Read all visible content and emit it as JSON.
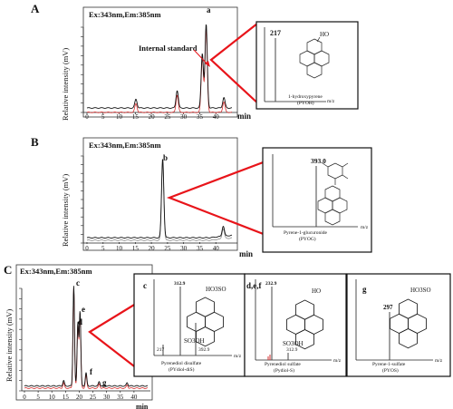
{
  "chart_data": [
    {
      "type": "line",
      "panel": "A",
      "condition": "Ex:343nm,Em:385nm",
      "ylabel": "Relative intensity (mV)",
      "xlabel": "min",
      "xlim": [
        0,
        45
      ],
      "x_ticks": [
        "0",
        "5",
        "10",
        "15",
        "20",
        "25",
        "30",
        "35",
        "40"
      ],
      "grid": false,
      "peaks": [
        {
          "label": "a",
          "x": 37.0,
          "height": 0.95
        },
        {
          "label": "",
          "x": 35.8,
          "height": 0.62
        },
        {
          "label": "",
          "x": 28.0,
          "height": 0.2
        },
        {
          "label": "",
          "x": 15.2,
          "height": 0.1
        },
        {
          "label": "",
          "x": 42.5,
          "height": 0.12
        }
      ],
      "annotations": [
        "Internal standard"
      ],
      "series": [
        {
          "color": "#111111",
          "baseline_offset": 0
        },
        {
          "color": "#d63030",
          "baseline_offset": -0.05
        }
      ],
      "inset": {
        "ms_peaks": [
          {
            "mz": 217,
            "label": "217"
          }
        ],
        "compound": "1-hydroxypyrene",
        "abbr": "(PYOH)",
        "xlabel": "m/z",
        "substituent": "HO"
      }
    },
    {
      "type": "line",
      "panel": "B",
      "condition": "Ex:343nm,Em:385nm",
      "ylabel": "Relative intensity (mV)",
      "xlabel": "min",
      "xlim": [
        0,
        45
      ],
      "x_ticks": [
        "0",
        "5",
        "10",
        "15",
        "20",
        "25",
        "30",
        "35",
        "40"
      ],
      "grid": false,
      "peaks": [
        {
          "label": "b",
          "x": 23.5,
          "height": 0.93
        },
        {
          "label": "",
          "x": 42.3,
          "height": 0.12
        }
      ],
      "series": [
        {
          "color": "#111111",
          "baseline_offset": 0
        },
        {
          "color": "#888888",
          "baseline_offset": -0.03
        }
      ],
      "inset": {
        "ms_peaks": [
          {
            "mz": 393.0,
            "label": "393.0"
          }
        ],
        "compound": "Pyrene-1-glucuronide",
        "abbr": "(PYOG)",
        "xlabel": "m/z"
      }
    },
    {
      "type": "line",
      "panel": "C",
      "condition": "Ex:343nm,Em:385nm",
      "ylabel": "Relative intensity (mV)",
      "xlabel": "min",
      "xlim": [
        0,
        45
      ],
      "x_ticks": [
        "0",
        "5",
        "10",
        "15",
        "20",
        "25",
        "30",
        "35",
        "40"
      ],
      "grid": false,
      "peaks": [
        {
          "label": "c",
          "x": 18.0,
          "height": 0.92
        },
        {
          "label": "d",
          "x": 19.5,
          "height": 0.58
        },
        {
          "label": "e",
          "x": 20.3,
          "height": 0.68
        },
        {
          "label": "f",
          "x": 22.5,
          "height": 0.12
        },
        {
          "label": "g",
          "x": 27.3,
          "height": 0.04
        },
        {
          "label": "",
          "x": 14.3,
          "height": 0.05
        },
        {
          "label": "",
          "x": 37.5,
          "height": 0.03
        }
      ],
      "series": [
        {
          "color": "#111111",
          "baseline_offset": 0
        },
        {
          "color": "#d63030",
          "baseline_offset": -0.02
        }
      ],
      "insets": [
        {
          "tag": "c",
          "ms_peaks": [
            {
              "mz": 217,
              "label": "217",
              "rel": 0.12
            },
            {
              "mz": 312.9,
              "label": "312.9",
              "rel": 1.0
            },
            {
              "mz": 392.9,
              "label": "392.9",
              "rel": 0.45
            }
          ],
          "compound": "Pyrenediol disulfate",
          "abbr": "(PYdiol-diS)",
          "xlabel": "m/z",
          "substituents": [
            "HO3SO",
            "SO3OH"
          ]
        },
        {
          "tag": "d,e,f",
          "ms_peaks": [
            {
              "mz": 232.9,
              "label": "232.9",
              "rel": 1.0
            },
            {
              "mz": 312.9,
              "label": "312.9",
              "rel": 0.1
            }
          ],
          "compound": "Pyrenediol sulfate",
          "abbr": "(Pydiol-S)",
          "xlabel": "m/z",
          "substituents": [
            "HO",
            "SO3OH"
          ]
        },
        {
          "tag": "g",
          "ms_peaks": [
            {
              "mz": 297,
              "label": "297",
              "rel": 1.0
            }
          ],
          "compound": "Pyrene-1-sulfate",
          "abbr": "(PYOS)",
          "xlabel": "m/z",
          "substituents": [
            "HO3SO"
          ]
        }
      ]
    }
  ]
}
